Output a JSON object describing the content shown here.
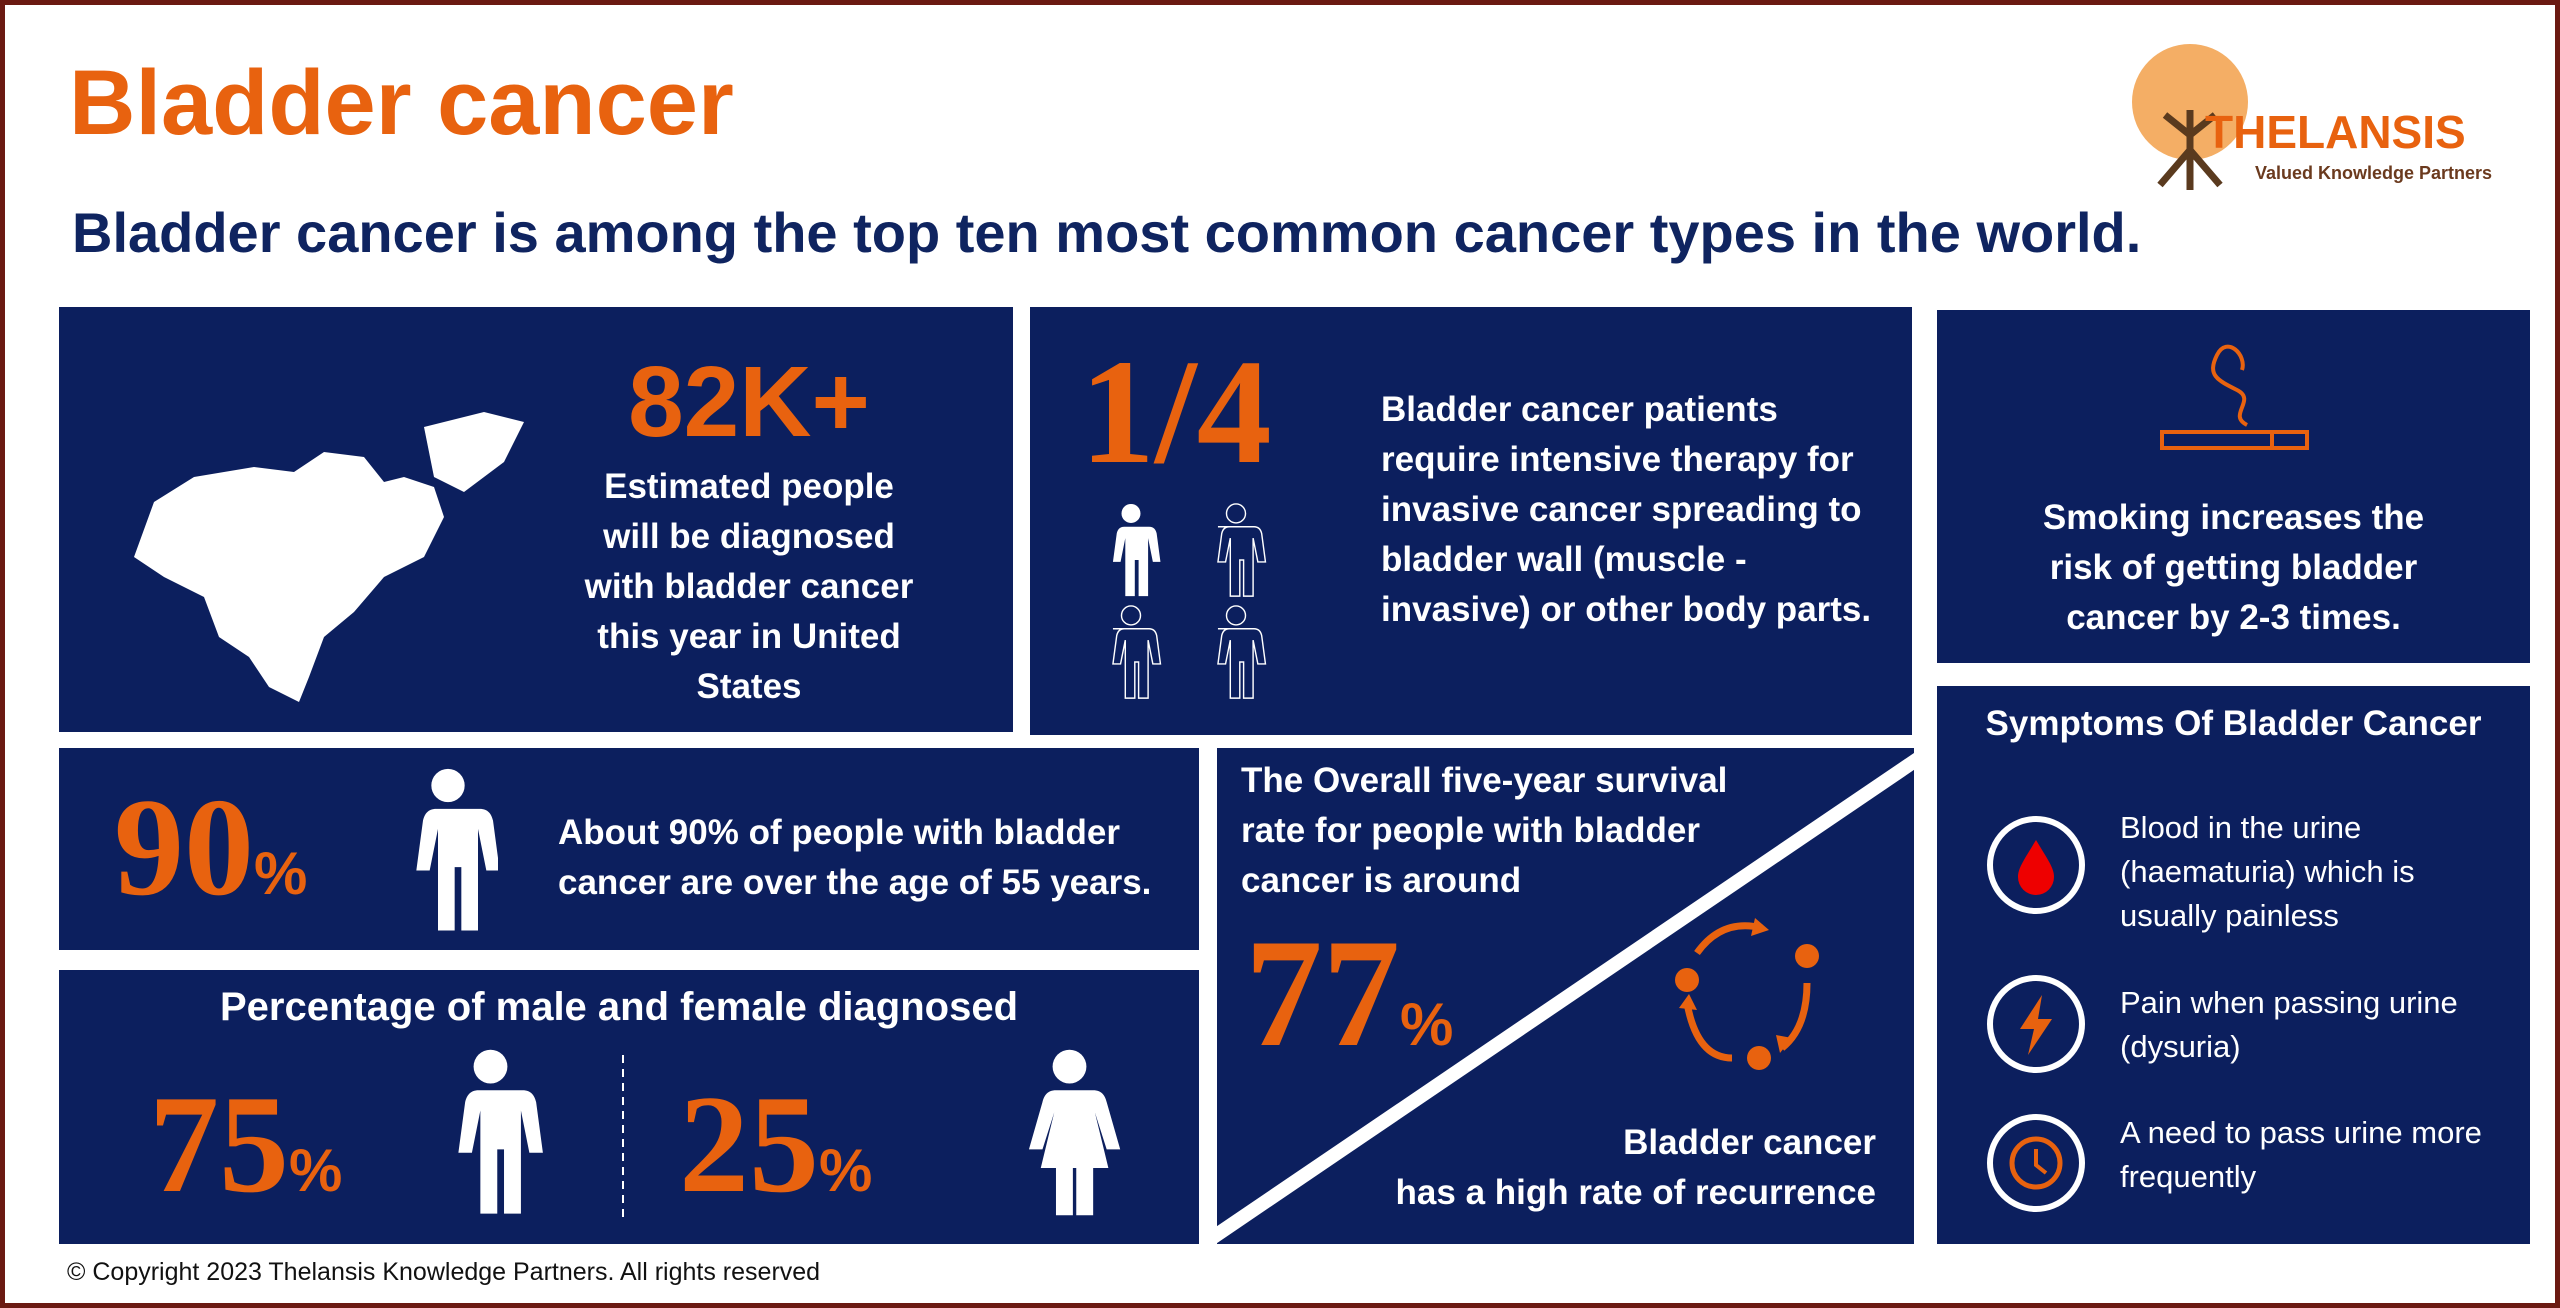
{
  "header": {
    "title": "Bladder cancer",
    "subtitle": "Bladder cancer is among the top ten most common cancer types in the world.",
    "logo": {
      "name": "THELANSIS",
      "tagline": "Valued Knowledge Partners"
    }
  },
  "panels": {
    "us_cases": {
      "stat": "82K+",
      "text": "Estimated people will be diagnosed with bladder cancer this year in United States"
    },
    "intensive_therapy": {
      "stat": "1/4",
      "text": "Bladder cancer patients require intensive therapy for invasive cancer spreading to bladder wall (muscle - invasive) or other body parts."
    },
    "smoking": {
      "text": "Smoking increases the risk of getting bladder cancer by 2-3 times."
    },
    "age": {
      "stat": "90",
      "unit": "%",
      "text": "About 90% of people with bladder cancer are over the age of 55 years."
    },
    "gender": {
      "title": "Percentage of male and female diagnosed",
      "male": {
        "stat": "75",
        "unit": "%"
      },
      "female": {
        "stat": "25",
        "unit": "%"
      }
    },
    "survival": {
      "text": "The Overall five-year survival rate for people with bladder cancer is around",
      "stat": "77",
      "unit": "%",
      "recurrence": [
        "Bladder cancer",
        "has a high rate of recurrence"
      ]
    },
    "symptoms": {
      "title": "Symptoms Of Bladder Cancer",
      "items": [
        "Blood in the urine (haematuria) which is usually painless",
        "Pain when passing urine (dysuria)",
        "A need to pass urine more frequently"
      ]
    }
  },
  "footer": {
    "copyright": "© Copyright 2023  Thelansis Knowledge Partners. All rights reserved"
  }
}
